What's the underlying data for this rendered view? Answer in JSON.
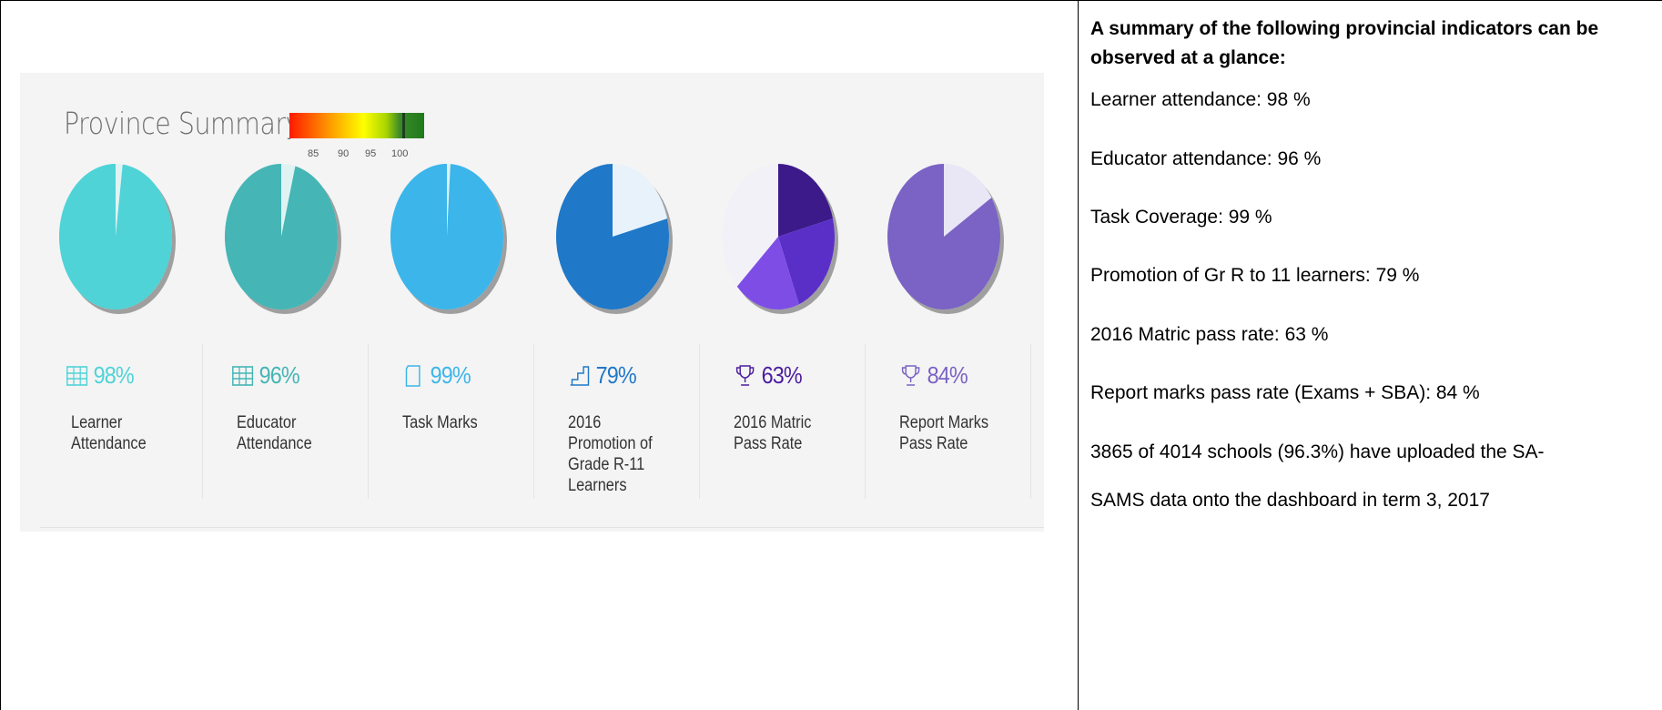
{
  "dashboard": {
    "title": "Province Summary",
    "scale_ticks": [
      "85",
      "90",
      "95",
      "100"
    ],
    "colors": {
      "learner": "#4fd3d7",
      "educator": "#45b5b5",
      "task": "#3bb5ea",
      "promotion": "#1f78c8",
      "matric": "#4c1d9f",
      "report": "#7a63c4"
    },
    "indicators": [
      {
        "icon": "calendar-grid-icon",
        "percent": "98%",
        "value": 98,
        "label_lines": [
          "Learner",
          "Attendance"
        ]
      },
      {
        "icon": "calendar-grid-icon",
        "percent": "96%",
        "value": 96,
        "label_lines": [
          "Educator",
          "Attendance"
        ]
      },
      {
        "icon": "document-icon",
        "percent": "99%",
        "value": 99,
        "label_lines": [
          "Task Marks"
        ]
      },
      {
        "icon": "stairs-icon",
        "percent": "79%",
        "value": 79,
        "label_lines": [
          "2016",
          "Promotion of",
          "Grade R-11",
          "Learners"
        ]
      },
      {
        "icon": "trophy-icon",
        "percent": "63%",
        "value": 63,
        "label_lines": [
          "2016 Matric",
          "Pass Rate"
        ]
      },
      {
        "icon": "trophy-icon",
        "percent": "84%",
        "value": 84,
        "label_lines": [
          "Report Marks",
          "Pass Rate"
        ]
      }
    ]
  },
  "summary": {
    "heading": "A summary of the following provincial indicators can be observed at a glance:",
    "lines": [
      "Learner attendance: 98 %",
      "Educator attendance: 96 %",
      "Task Coverage: 99 %",
      "Promotion of Gr R to 11 learners: 79 %",
      "2016 Matric pass rate: 63 %",
      "Report marks pass rate (Exams + SBA): 84 %",
      "3865 of 4014 schools (96.3%) have uploaded the SA-",
      "SAMS data onto the dashboard in term 3, 2017"
    ]
  }
}
